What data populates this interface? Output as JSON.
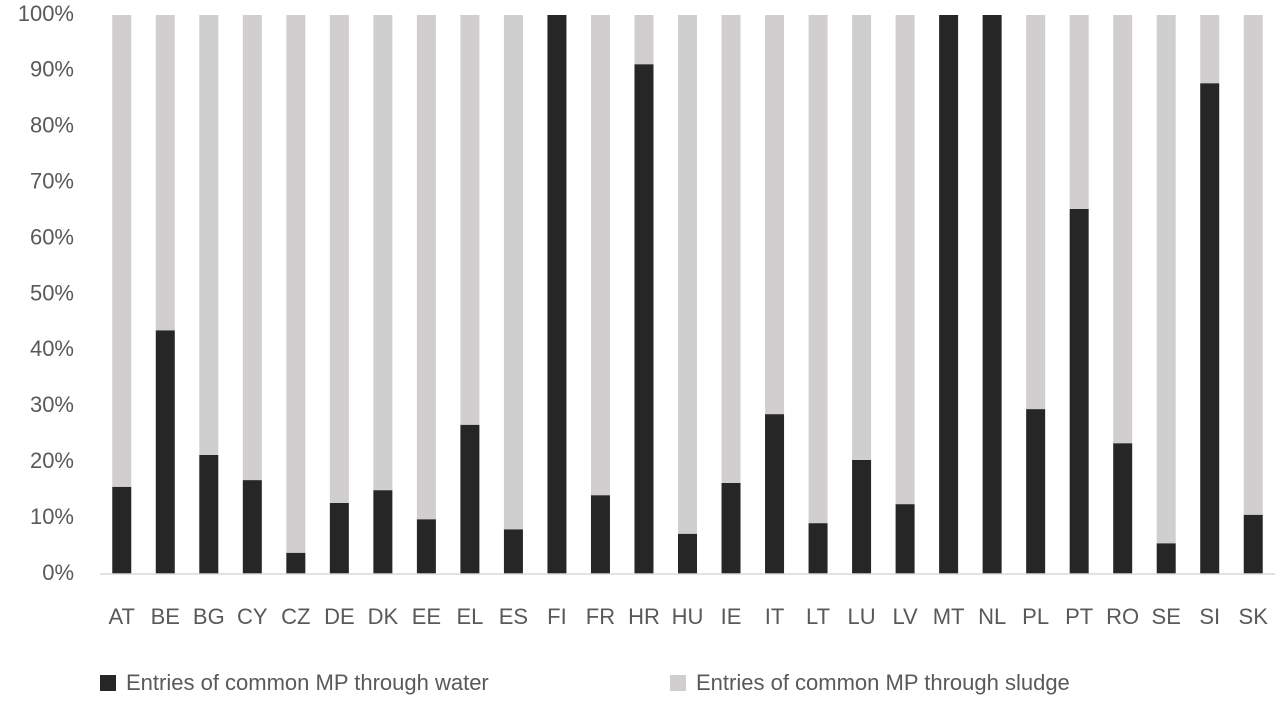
{
  "chart_data": {
    "type": "stacked-bar",
    "categories": [
      "AT",
      "BE",
      "BG",
      "CY",
      "CZ",
      "DE",
      "DK",
      "EE",
      "EL",
      "ES",
      "FI",
      "FR",
      "HR",
      "HU",
      "IE",
      "IT",
      "LT",
      "LU",
      "LV",
      "MT",
      "NL",
      "PL",
      "PT",
      "RO",
      "SE",
      "SI",
      "SK"
    ],
    "series": [
      {
        "name": "Entries of common MP through water",
        "color": "#262626",
        "values": [
          15.6,
          43.6,
          21.3,
          16.8,
          3.8,
          12.7,
          15.0,
          9.8,
          26.7,
          8.0,
          100,
          14.1,
          91.2,
          7.2,
          16.3,
          28.6,
          9.1,
          20.4,
          12.5,
          100,
          100,
          29.5,
          65.3,
          23.4,
          5.5,
          87.8,
          10.6
        ]
      },
      {
        "name": "Entries of common MP through sludge",
        "color": "#d0cece",
        "values": [
          84.4,
          56.4,
          78.7,
          83.2,
          96.2,
          87.3,
          85.0,
          90.2,
          73.3,
          92.0,
          0,
          85.9,
          8.8,
          92.8,
          83.7,
          71.4,
          90.9,
          79.6,
          87.5,
          0,
          0,
          70.5,
          34.7,
          76.6,
          94.5,
          12.2,
          89.4
        ]
      }
    ],
    "ylim": [
      0,
      100
    ],
    "yticks": [
      {
        "value": 0,
        "label": "0%"
      },
      {
        "value": 10,
        "label": "10%"
      },
      {
        "value": 20,
        "label": "20%"
      },
      {
        "value": 30,
        "label": "30%"
      },
      {
        "value": 40,
        "label": "40%"
      },
      {
        "value": 50,
        "label": "50%"
      },
      {
        "value": 60,
        "label": "60%"
      },
      {
        "value": 70,
        "label": "70%"
      },
      {
        "value": 80,
        "label": "80%"
      },
      {
        "value": 90,
        "label": "90%"
      },
      {
        "value": 100,
        "label": "100%"
      }
    ],
    "grid": false,
    "legend": "bottom"
  }
}
